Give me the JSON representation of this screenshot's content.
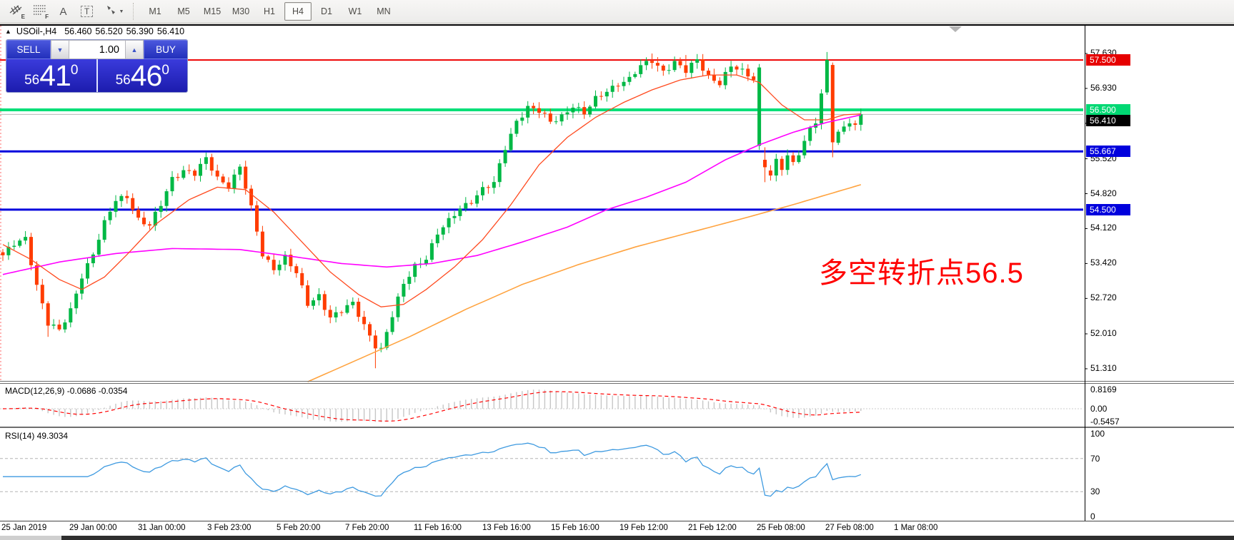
{
  "toolbar": {
    "tools": [
      {
        "name": "equidistant-channel",
        "badge": "E"
      },
      {
        "name": "fibonacci-retracement",
        "badge": "F"
      },
      {
        "name": "text-label",
        "badge": "A"
      },
      {
        "name": "text-box",
        "badge": "T"
      },
      {
        "name": "arrow-objects",
        "badge": ""
      }
    ],
    "timeframes": [
      {
        "label": "M1"
      },
      {
        "label": "M5"
      },
      {
        "label": "M15"
      },
      {
        "label": "M30"
      },
      {
        "label": "H1"
      },
      {
        "label": "H4"
      },
      {
        "label": "D1"
      },
      {
        "label": "W1"
      },
      {
        "label": "MN"
      }
    ],
    "active_timeframe": "H4"
  },
  "chart_header": {
    "collapse_arrow": "▲",
    "symbol_period": "USOil-,H4",
    "open": "56.460",
    "high": "56.520",
    "low": "56.390",
    "close": "56.410"
  },
  "trade_panel": {
    "sell_label": "SELL",
    "buy_label": "BUY",
    "volume": "1.00",
    "spin_down": "▼",
    "spin_up": "▲",
    "sell_price": {
      "prefix": "56",
      "main": "41",
      "sup": "0"
    },
    "buy_price": {
      "prefix": "56",
      "main": "46",
      "sup": "0"
    }
  },
  "annotation": {
    "text": "多空转折点56.5",
    "color": "#ff0000"
  },
  "indicators": {
    "macd_label": "MACD(12,26,9) -0.0686 -0.0354",
    "rsi_label": "RSI(14) 49.3034"
  },
  "chart_data": {
    "type": "candlestick",
    "symbol": "USOil-",
    "timeframe": "H4",
    "ylim": [
      51.06,
      58.22
    ],
    "grid": false,
    "current_price": 56.41,
    "price_ticks": [
      "57.630",
      "56.930",
      "56.230",
      "55.520",
      "54.820",
      "54.120",
      "53.420",
      "52.720",
      "52.010",
      "51.310"
    ],
    "price_tags": [
      {
        "text": "57.500",
        "price": 57.5,
        "bg": "#e60000",
        "dy": 0
      },
      {
        "text": "56.500",
        "price": 56.5,
        "bg": "#00d873",
        "dy": 0
      },
      {
        "text": "56.410",
        "price": 56.41,
        "bg": "#000000",
        "dy": 9
      },
      {
        "text": "55.667",
        "price": 55.667,
        "bg": "#0000dd",
        "dy": 0
      },
      {
        "text": "54.500",
        "price": 54.5,
        "bg": "#0000dd",
        "dy": 0
      }
    ],
    "hlines": [
      {
        "price": 57.5,
        "color": "#ee0000",
        "width": 2
      },
      {
        "price": 56.5,
        "color": "#00df78",
        "width": 4
      },
      {
        "price": 55.667,
        "color": "#0000dd",
        "width": 3
      },
      {
        "price": 54.5,
        "color": "#0000dd",
        "width": 3
      }
    ],
    "time_labels": [
      {
        "text": "25 Jan 2019",
        "x": 2
      },
      {
        "text": "29 Jan 00:00",
        "x": 97
      },
      {
        "text": "31 Jan 00:00",
        "x": 193
      },
      {
        "text": "3 Feb 23:00",
        "x": 290
      },
      {
        "text": "5 Feb 20:00",
        "x": 387
      },
      {
        "text": "7 Feb 20:00",
        "x": 483
      },
      {
        "text": "11 Feb 16:00",
        "x": 579
      },
      {
        "text": "13 Feb 16:00",
        "x": 675
      },
      {
        "text": "15 Feb 16:00",
        "x": 771
      },
      {
        "text": "19 Feb 12:00",
        "x": 867
      },
      {
        "text": "21 Feb 12:00",
        "x": 963
      },
      {
        "text": "25 Feb 08:00",
        "x": 1059
      },
      {
        "text": "27 Feb 08:00",
        "x": 1155
      },
      {
        "text": "1 Mar 08:00",
        "x": 1251
      }
    ],
    "bars": 153,
    "close_waypoints": [
      [
        0,
        53.55
      ],
      [
        2,
        53.8
      ],
      [
        4,
        53.95
      ],
      [
        6,
        53.0
      ],
      [
        8,
        52.2
      ],
      [
        10,
        52.05
      ],
      [
        12,
        52.5
      ],
      [
        14,
        53.2
      ],
      [
        16,
        53.6
      ],
      [
        18,
        54.2
      ],
      [
        20,
        54.7
      ],
      [
        22,
        54.8
      ],
      [
        24,
        54.3
      ],
      [
        26,
        54.15
      ],
      [
        28,
        54.6
      ],
      [
        30,
        55.15
      ],
      [
        32,
        55.3
      ],
      [
        34,
        55.2
      ],
      [
        36,
        55.5
      ],
      [
        38,
        55.15
      ],
      [
        40,
        55.0
      ],
      [
        42,
        55.35
      ],
      [
        44,
        54.5
      ],
      [
        46,
        53.6
      ],
      [
        48,
        53.35
      ],
      [
        50,
        53.55
      ],
      [
        52,
        53.2
      ],
      [
        54,
        52.6
      ],
      [
        56,
        52.8
      ],
      [
        58,
        52.35
      ],
      [
        60,
        52.45
      ],
      [
        62,
        52.6
      ],
      [
        64,
        52.2
      ],
      [
        66,
        51.8
      ],
      [
        67,
        51.7
      ],
      [
        69,
        52.35
      ],
      [
        71,
        53.0
      ],
      [
        73,
        53.4
      ],
      [
        75,
        53.55
      ],
      [
        77,
        54.0
      ],
      [
        79,
        54.25
      ],
      [
        81,
        54.55
      ],
      [
        83,
        54.7
      ],
      [
        85,
        54.9
      ],
      [
        87,
        55.0
      ],
      [
        89,
        55.75
      ],
      [
        91,
        56.3
      ],
      [
        93,
        56.55
      ],
      [
        95,
        56.45
      ],
      [
        97,
        56.25
      ],
      [
        99,
        56.4
      ],
      [
        101,
        56.6
      ],
      [
        103,
        56.4
      ],
      [
        105,
        56.7
      ],
      [
        107,
        56.9
      ],
      [
        109,
        57.05
      ],
      [
        111,
        57.1
      ],
      [
        113,
        57.35
      ],
      [
        115,
        57.5
      ],
      [
        117,
        57.3
      ],
      [
        119,
        57.45
      ],
      [
        121,
        57.25
      ],
      [
        123,
        57.5
      ],
      [
        125,
        57.2
      ],
      [
        127,
        57.05
      ],
      [
        129,
        57.35
      ],
      [
        131,
        57.25
      ],
      [
        133,
        57.15
      ],
      [
        134,
        57.35
      ],
      [
        135,
        55.35
      ],
      [
        136,
        55.2
      ],
      [
        137,
        55.45
      ],
      [
        138,
        55.3
      ],
      [
        139,
        55.55
      ],
      [
        140,
        55.4
      ],
      [
        141,
        55.65
      ],
      [
        142,
        55.9
      ],
      [
        143,
        56.15
      ],
      [
        144,
        56.3
      ],
      [
        145,
        56.8
      ],
      [
        146,
        57.5
      ],
      [
        147,
        55.85
      ],
      [
        148,
        56.0
      ],
      [
        149,
        56.15
      ],
      [
        150,
        56.3
      ],
      [
        151,
        56.2
      ],
      [
        152,
        56.41
      ]
    ],
    "candle_overrides": [
      {
        "i": 8,
        "l": 51.95
      },
      {
        "i": 66,
        "l": 51.32
      },
      {
        "i": 115,
        "h": 57.63
      },
      {
        "i": 121,
        "h": 57.6
      },
      {
        "i": 134,
        "o": 55.78,
        "h": 57.42,
        "l": 55.7,
        "c": 57.35
      },
      {
        "i": 135,
        "o": 55.5,
        "h": 55.75,
        "l": 55.05,
        "c": 55.35
      },
      {
        "i": 146,
        "o": 56.85,
        "h": 57.66,
        "l": 56.8,
        "c": 57.5
      },
      {
        "i": 147,
        "o": 57.4,
        "h": 57.45,
        "l": 55.55,
        "c": 55.85
      }
    ],
    "ma_fast_waypoints": [
      [
        0,
        53.8
      ],
      [
        5,
        53.5
      ],
      [
        10,
        53.1
      ],
      [
        14,
        52.9
      ],
      [
        18,
        53.15
      ],
      [
        22,
        53.6
      ],
      [
        27,
        54.2
      ],
      [
        33,
        54.7
      ],
      [
        38,
        54.95
      ],
      [
        43,
        54.9
      ],
      [
        48,
        54.45
      ],
      [
        53,
        53.85
      ],
      [
        58,
        53.25
      ],
      [
        63,
        52.8
      ],
      [
        67,
        52.55
      ],
      [
        71,
        52.6
      ],
      [
        75,
        52.9
      ],
      [
        80,
        53.35
      ],
      [
        85,
        53.9
      ],
      [
        90,
        54.6
      ],
      [
        95,
        55.4
      ],
      [
        100,
        55.95
      ],
      [
        105,
        56.35
      ],
      [
        110,
        56.65
      ],
      [
        115,
        56.9
      ],
      [
        120,
        57.1
      ],
      [
        125,
        57.2
      ],
      [
        130,
        57.2
      ],
      [
        134,
        57.05
      ],
      [
        138,
        56.6
      ],
      [
        142,
        56.3
      ],
      [
        146,
        56.3
      ],
      [
        149,
        56.4
      ],
      [
        152,
        56.42
      ]
    ],
    "ma_mid_waypoints": [
      [
        0,
        53.2
      ],
      [
        10,
        53.45
      ],
      [
        20,
        53.62
      ],
      [
        30,
        53.72
      ],
      [
        42,
        53.7
      ],
      [
        52,
        53.55
      ],
      [
        60,
        53.42
      ],
      [
        68,
        53.35
      ],
      [
        76,
        53.42
      ],
      [
        84,
        53.58
      ],
      [
        92,
        53.85
      ],
      [
        100,
        54.15
      ],
      [
        107,
        54.5
      ],
      [
        114,
        54.75
      ],
      [
        121,
        55.05
      ],
      [
        128,
        55.5
      ],
      [
        134,
        55.8
      ],
      [
        140,
        56.05
      ],
      [
        146,
        56.25
      ],
      [
        152,
        56.4
      ]
    ],
    "ma_slow_waypoints": [
      [
        54,
        51.05
      ],
      [
        62,
        51.45
      ],
      [
        72,
        51.95
      ],
      [
        82,
        52.5
      ],
      [
        92,
        53.0
      ],
      [
        102,
        53.4
      ],
      [
        112,
        53.75
      ],
      [
        122,
        54.05
      ],
      [
        132,
        54.35
      ],
      [
        140,
        54.6
      ],
      [
        146,
        54.8
      ],
      [
        152,
        55.0
      ]
    ],
    "macd_scale": [
      "0.8169",
      "0.00",
      "-0.5457"
    ],
    "rsi_scale": [
      "100",
      "70",
      "30",
      "0"
    ],
    "rsi_levels": [
      70,
      30
    ],
    "colors": {
      "bull": "#00b845",
      "bear": "#ff3c00",
      "ma_fast": "#ff4a1f",
      "ma_mid": "#ff00ff",
      "ma_slow": "#ffa33f",
      "macd_hist": "#c6c6c6",
      "macd_signal": "#ff0000",
      "rsi": "#3e9ae0",
      "current_price_line": "#b8b8b8"
    }
  }
}
